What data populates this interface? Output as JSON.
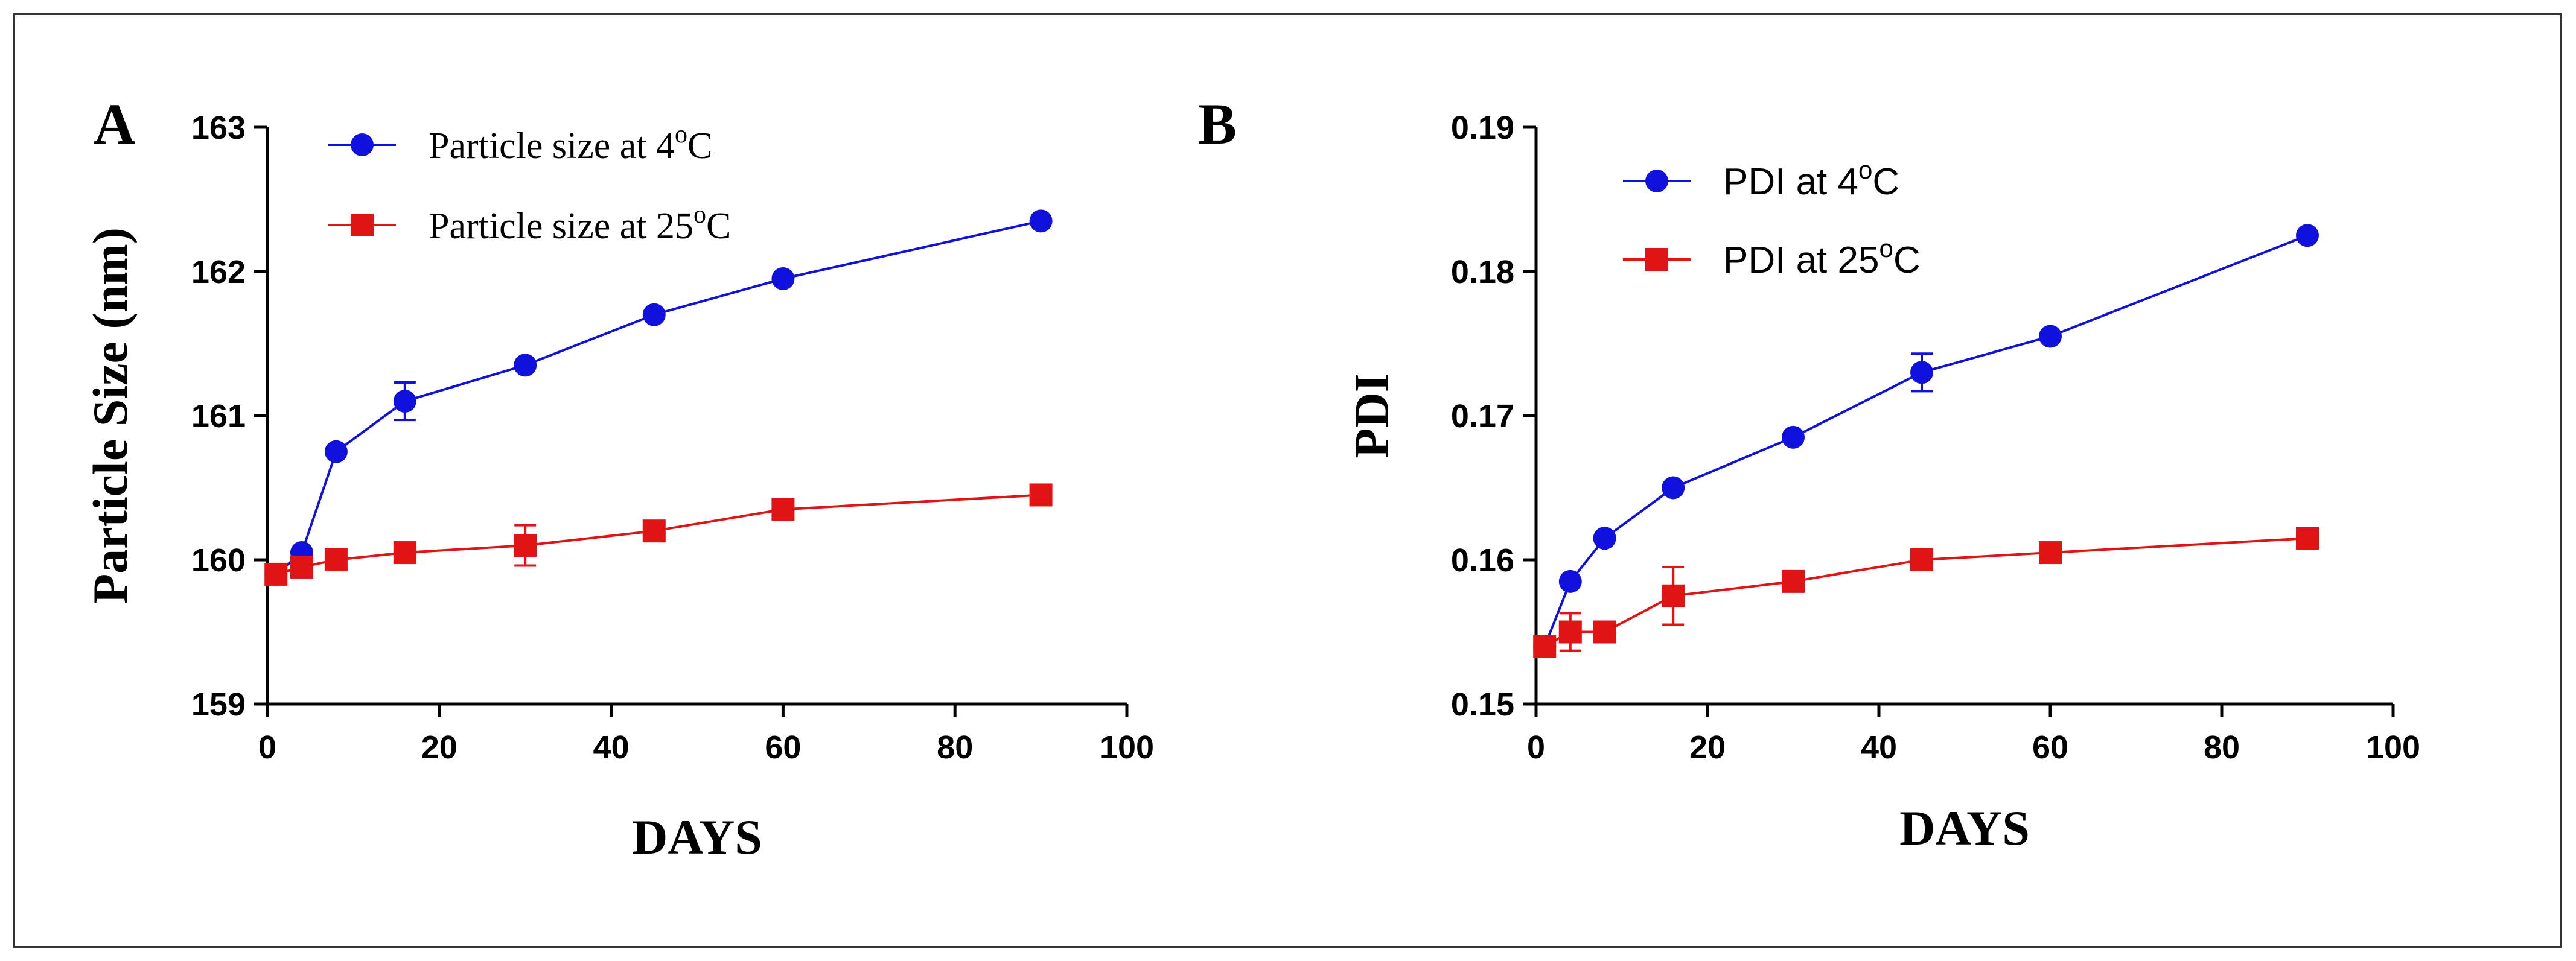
{
  "chart_data": [
    {
      "type": "line",
      "panel_label": "A",
      "title": "",
      "xlabel": "DAYS",
      "ylabel": "Particle Size (nm)",
      "xlim": [
        0,
        100
      ],
      "ylim": [
        159,
        163
      ],
      "xticks": [
        0,
        20,
        40,
        60,
        80,
        100
      ],
      "yticks": [
        159,
        160,
        161,
        162,
        163
      ],
      "xtick_labels": [
        "0",
        "20",
        "40",
        "60",
        "80",
        "100"
      ],
      "ytick_labels": [
        "159",
        "160",
        "161",
        "162",
        "163"
      ],
      "legend_position": "top-left",
      "legend_font": "serif",
      "series": [
        {
          "name": "Particle size at 4°C",
          "legend_prefix": "Particle size at 4",
          "legend_sup": "o",
          "legend_suffix": "C",
          "marker": "circle",
          "color": "#1111dd",
          "x": [
            1,
            4,
            8,
            16,
            30,
            45,
            60,
            90
          ],
          "y": [
            159.9,
            160.05,
            160.75,
            161.1,
            161.35,
            161.7,
            161.95,
            162.35
          ],
          "error": [
            0,
            0,
            0,
            0.13,
            0,
            0,
            0,
            0
          ]
        },
        {
          "name": "Particle size at 25°C",
          "legend_prefix": "Particle size at 25",
          "legend_sup": "o",
          "legend_suffix": "C",
          "marker": "square",
          "color": "#e01414",
          "x": [
            1,
            4,
            8,
            16,
            30,
            45,
            60,
            90
          ],
          "y": [
            159.9,
            159.95,
            160.0,
            160.05,
            160.1,
            160.2,
            160.35,
            160.45
          ],
          "error": [
            0,
            0,
            0,
            0,
            0.14,
            0,
            0,
            0
          ]
        }
      ]
    },
    {
      "type": "line",
      "panel_label": "B",
      "title": "",
      "xlabel": "DAYS",
      "ylabel": "PDI",
      "xlim": [
        0,
        100
      ],
      "ylim": [
        0.15,
        0.19
      ],
      "xticks": [
        0,
        20,
        40,
        60,
        80,
        100
      ],
      "yticks": [
        0.15,
        0.16,
        0.17,
        0.18,
        0.19
      ],
      "xtick_labels": [
        "0",
        "20",
        "40",
        "60",
        "80",
        "100"
      ],
      "ytick_labels": [
        "0.15",
        "0.16",
        "0.17",
        "0.18",
        "0.19"
      ],
      "legend_position": "top-left",
      "legend_font": "sans",
      "series": [
        {
          "name": "PDI at 4°C",
          "legend_prefix": "PDI at 4",
          "legend_sup": "o",
          "legend_suffix": "C",
          "marker": "circle",
          "color": "#1111dd",
          "x": [
            1,
            4,
            8,
            16,
            30,
            45,
            60,
            90
          ],
          "y": [
            0.154,
            0.1585,
            0.1615,
            0.165,
            0.1685,
            0.173,
            0.1755,
            0.1825
          ],
          "error": [
            0,
            0,
            0,
            0,
            0,
            0.0013,
            0,
            0
          ]
        },
        {
          "name": "PDI at 25°C",
          "legend_prefix": "PDI at 25",
          "legend_sup": "o",
          "legend_suffix": "C",
          "marker": "square",
          "color": "#e01414",
          "x": [
            1,
            4,
            8,
            16,
            30,
            45,
            60,
            90
          ],
          "y": [
            0.154,
            0.155,
            0.155,
            0.1575,
            0.1585,
            0.16,
            0.1605,
            0.1615
          ],
          "error": [
            0,
            0.0013,
            0,
            0.002,
            0,
            0,
            0,
            0
          ]
        }
      ]
    }
  ]
}
